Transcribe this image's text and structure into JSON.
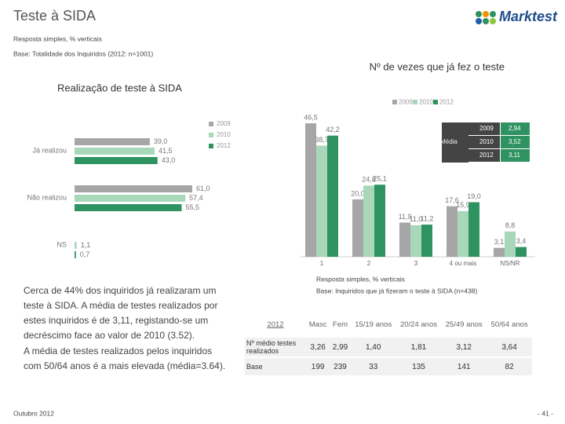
{
  "title": "Teste à SIDA",
  "subtitle": "Resposta simples, % verticais",
  "base": "Base: Totalidade dos Inquiridos (2012: n=1001)",
  "logo": "Marktest",
  "chart_data": [
    {
      "type": "hbar",
      "title": "Realização de teste à SIDA",
      "categories": [
        "Já realizou",
        "Não realizou",
        "NS"
      ],
      "series": [
        {
          "name": "2009",
          "color": "#a6a6a6",
          "values": [
            39.0,
            61.0,
            null
          ],
          "value_labels": [
            "39,0",
            "61,0",
            null
          ]
        },
        {
          "name": "2010",
          "color": "#a8d8b9",
          "values": [
            41.5,
            57.4,
            1.1
          ],
          "value_labels": [
            "41,5",
            "57,4",
            "1,1"
          ]
        },
        {
          "name": "2012",
          "color": "#2e9360",
          "values": [
            43.0,
            55.5,
            0.7
          ],
          "value_labels": [
            "43,0",
            "55,5",
            "0,7"
          ]
        }
      ]
    },
    {
      "type": "bar",
      "title": "Nº de vezes que já fez o teste",
      "categories": [
        "1",
        "2",
        "3",
        "4 ou mais",
        "NS/NR"
      ],
      "series": [
        {
          "name": "2009",
          "color": "#a6a6a6",
          "values": [
            46.5,
            20.0,
            11.9,
            17.6,
            3.1
          ],
          "value_labels": [
            "46,5",
            "20,0",
            "11,9",
            "17,6",
            "3,1"
          ]
        },
        {
          "name": "2010",
          "color": "#a8d8b9",
          "values": [
            38.7,
            24.8,
            11.0,
            15.9,
            8.8
          ],
          "value_labels": [
            "38,7",
            "24,8",
            "11,0",
            "15,9",
            "8,8"
          ]
        },
        {
          "name": "2012",
          "color": "#2e9360",
          "values": [
            42.2,
            25.1,
            11.2,
            19.0,
            3.4
          ],
          "value_labels": [
            "42,2",
            "25,1",
            "11,2",
            "19,0",
            "3,4"
          ]
        }
      ],
      "note": "Resposta simples, % verticais",
      "base": "Base: Inquiridos que já fizeram o teste à SIDA (n=438)",
      "average_table": {
        "label": "Média",
        "rows": [
          [
            "2009",
            "2,94"
          ],
          [
            "2010",
            "3,52"
          ],
          [
            "2012",
            "3,11"
          ]
        ]
      }
    }
  ],
  "text": [
    "Cerca de 44% dos inquiridos já realizaram um teste à SIDA. A média de testes realizados por estes inquiridos é de 3,11, registando-se um decréscimo face ao valor de 2010 (3.52).",
    "A média de testes realizados pelos inquiridos com 50/64 anos é a mais elevada (média=3.64)."
  ],
  "table": {
    "header": [
      "2012",
      "Masc",
      "Fem",
      "15/19 anos",
      "20/24 anos",
      "25/49 anos",
      "50/64 anos"
    ],
    "rows": [
      [
        "Nº médio testes realizados",
        "3,26",
        "2,99",
        "1,40",
        "1,81",
        "3,12",
        "3,64"
      ],
      [
        "Base",
        "199",
        "239",
        "33",
        "135",
        "141",
        "82"
      ]
    ]
  },
  "footer": "Outubro 2012",
  "page": "- 41 -"
}
